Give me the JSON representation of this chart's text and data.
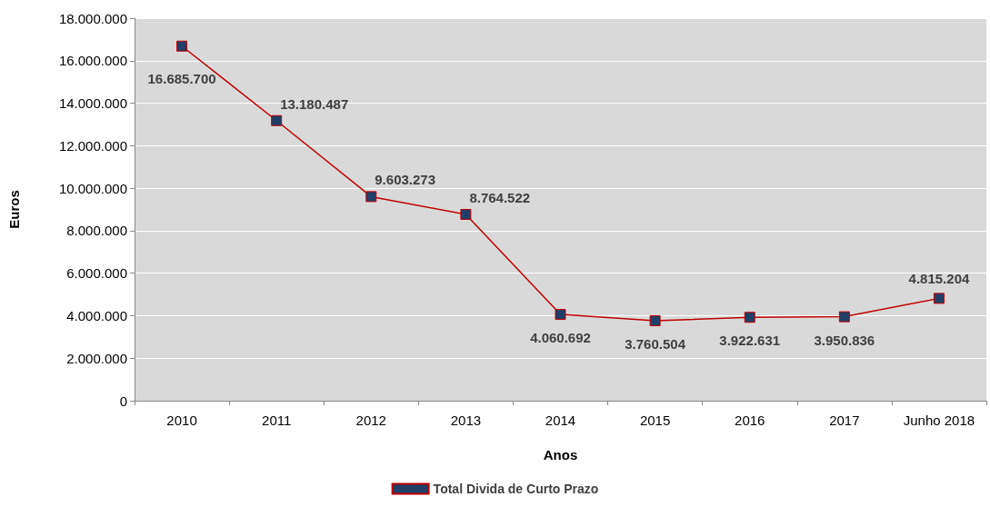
{
  "chart_data": {
    "type": "line",
    "xlabel": "Anos",
    "ylabel": "Euros",
    "categories": [
      "2010",
      "2011",
      "2012",
      "2013",
      "2014",
      "2015",
      "2016",
      "2017",
      "Junho 2018"
    ],
    "series": [
      {
        "name": "Total Divida de Curto Prazo",
        "color": "#c00000",
        "values": [
          16685700,
          13180487,
          9603273,
          8764522,
          4060692,
          3760504,
          3922631,
          3950836,
          4815204
        ],
        "value_labels": [
          "16.685.700",
          "13.180.487",
          "9.603.273",
          "8.764.522",
          "4.060.692",
          "3.760.504",
          "3.922.631",
          "3.950.836",
          "4.815.204"
        ]
      }
    ],
    "ylim": [
      0,
      18000000
    ],
    "yticks": [
      {
        "value": 0,
        "label": "0"
      },
      {
        "value": 2000000,
        "label": "2.000.000"
      },
      {
        "value": 4000000,
        "label": "4.000.000"
      },
      {
        "value": 6000000,
        "label": "6.000.000"
      },
      {
        "value": 8000000,
        "label": "8.000.000"
      },
      {
        "value": 10000000,
        "label": "10.000.000"
      },
      {
        "value": 12000000,
        "label": "12.000.000"
      },
      {
        "value": 14000000,
        "label": "14.000.000"
      },
      {
        "value": 16000000,
        "label": "16.000.000"
      },
      {
        "value": 18000000,
        "label": "18.000.000"
      }
    ],
    "grid": "y",
    "legend": "bottom",
    "marker": "square",
    "line_style": "solid"
  }
}
